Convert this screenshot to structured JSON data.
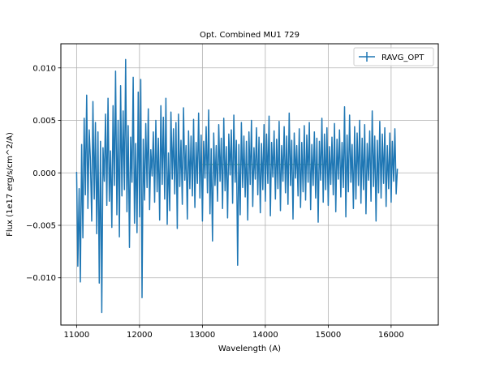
{
  "chart_data": {
    "type": "line",
    "title": "Opt. Combined MU1 729",
    "xlabel": "Wavelength (A)",
    "ylabel": "Flux (1e17 erg/s/cm^2/A)",
    "xlim": [
      10750,
      16750
    ],
    "ylim": [
      -0.0145,
      0.0123
    ],
    "xticks": [
      11000,
      12000,
      13000,
      14000,
      15000,
      16000
    ],
    "xtick_labels": [
      "11000",
      "12000",
      "13000",
      "14000",
      "15000",
      "16000"
    ],
    "yticks": [
      -0.01,
      -0.005,
      0.0,
      0.005,
      0.01
    ],
    "ytick_labels": [
      "−0.010",
      "−0.005",
      "0.000",
      "0.005",
      "0.010"
    ],
    "grid": true,
    "legend_position": "top-right",
    "series": [
      {
        "name": "RAVG_OPT",
        "color": "#1f77b4",
        "x_start": 11000,
        "x_step": 20,
        "values": [
          0.0001,
          -0.0089,
          -0.0015,
          -0.0104,
          0.0027,
          -0.0062,
          0.0052,
          -0.0021,
          0.0074,
          -0.0034,
          0.0041,
          0.0012,
          -0.0046,
          0.0068,
          -0.0025,
          0.0048,
          -0.0058,
          0.0039,
          -0.0105,
          0.003,
          -0.0133,
          0.0024,
          -0.0008,
          0.0056,
          -0.0031,
          0.0071,
          -0.0027,
          0.0021,
          -0.0052,
          0.0064,
          -0.0012,
          0.0097,
          -0.004,
          0.005,
          -0.0061,
          0.0083,
          -0.0022,
          0.0059,
          -0.0016,
          0.0108,
          -0.0037,
          0.0045,
          -0.0071,
          0.0034,
          -0.0009,
          0.0091,
          -0.0048,
          0.0028,
          -0.0057,
          0.0077,
          -0.0042,
          0.0089,
          -0.0119,
          0.0032,
          -0.0026,
          0.0047,
          -0.0014,
          0.0061,
          -0.0035,
          0.0022,
          -0.0003,
          0.0039,
          -0.0028,
          0.005,
          -0.0018,
          0.0033,
          -0.0045,
          0.0064,
          -0.0011,
          0.0053,
          -0.0025,
          0.0071,
          -0.0049,
          0.0019,
          -0.0036,
          0.0058,
          -0.0006,
          0.0042,
          -0.002,
          0.0048,
          -0.0053,
          0.0056,
          -0.0013,
          0.0031,
          -0.003,
          0.0062,
          -0.0007,
          0.0026,
          -0.0044,
          0.004,
          -0.0015,
          0.0035,
          -0.0022,
          0.0051,
          -0.0033,
          0.0029,
          -0.001,
          0.0057,
          -0.0024,
          0.0036,
          -0.0046,
          0.003,
          -0.0005,
          0.0044,
          -0.0019,
          0.006,
          -0.0039,
          0.0023,
          -0.0065,
          0.0038,
          -0.0012,
          0.0026,
          -0.0027,
          0.0046,
          -0.0008,
          0.0033,
          -0.0034,
          0.0052,
          -0.0017,
          0.0025,
          -0.0043,
          0.0037,
          -0.0002,
          0.0041,
          -0.0029,
          0.0055,
          -0.0009,
          0.0031,
          -0.0088,
          0.0027,
          -0.004,
          0.0048,
          -0.0014,
          0.0035,
          -0.0023,
          0.003,
          -0.0045,
          0.0039,
          -0.0011,
          0.005,
          -0.0032,
          0.0024,
          -0.0006,
          0.0043,
          -0.0021,
          0.0034,
          -0.0038,
          0.0028,
          -0.0016,
          0.0046,
          -0.0027,
          0.0037,
          -0.001,
          0.0054,
          -0.0041,
          0.0029,
          -0.0004,
          0.004,
          -0.0025,
          0.0032,
          -0.0015,
          0.0049,
          -0.0036,
          0.0026,
          -0.0008,
          0.0044,
          -0.0019,
          0.0035,
          -0.003,
          0.0057,
          -0.0012,
          0.0031,
          -0.0044,
          0.0038,
          -0.0005,
          0.0026,
          -0.0022,
          0.0042,
          -0.0033,
          0.0029,
          -0.0018,
          0.0045,
          -0.0026,
          0.0036,
          -0.0009,
          0.0048,
          -0.0035,
          0.0027,
          -0.0012,
          0.0039,
          -0.0024,
          0.0033,
          -0.0047,
          0.003,
          -0.0007,
          0.0052,
          -0.0028,
          0.0037,
          -0.0016,
          0.0043,
          -0.0031,
          0.0025,
          -0.0011,
          0.0034,
          -0.0021,
          0.0047,
          -0.0037,
          0.0032,
          -0.0006,
          0.0041,
          -0.0023,
          0.0029,
          -0.0014,
          0.0063,
          -0.0042,
          0.0036,
          -0.0018,
          0.0055,
          -0.0009,
          0.0027,
          -0.0034,
          0.0044,
          -0.0025,
          0.0038,
          -0.0012,
          0.005,
          -0.0029,
          0.0033,
          -0.0016,
          0.0046,
          -0.0039,
          0.0028,
          -0.0007,
          0.004,
          -0.0027,
          0.0059,
          -0.0013,
          0.0035,
          -0.0046,
          0.0031,
          -0.0019,
          0.0049,
          -0.0024,
          0.0037,
          -0.001,
          0.0043,
          -0.0032,
          0.0026,
          -0.0015,
          0.0038,
          -0.0028,
          0.003,
          -0.0008,
          0.0042,
          -0.002,
          0.0004
        ]
      },
      {
        "name": "",
        "color": "#2ca02c",
        "x": [
          13000,
          15000
        ],
        "values": [
          0.0008,
          0.0008
        ]
      }
    ]
  }
}
